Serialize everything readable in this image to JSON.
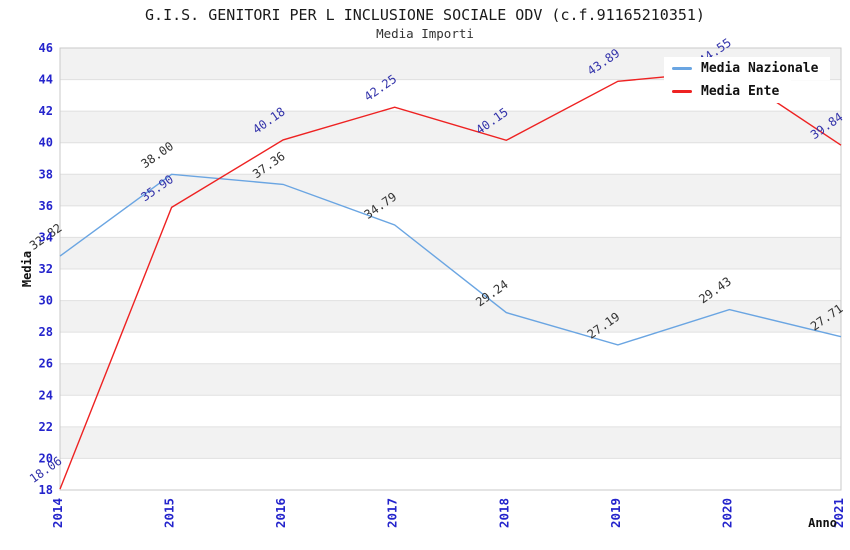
{
  "chart_data": {
    "type": "line",
    "title": "G.I.S. GENITORI PER L INCLUSIONE SOCIALE ODV (c.f.91165210351)",
    "subtitle": "Media Importi",
    "xlabel": "Anno",
    "ylabel": "Media",
    "categories": [
      "2014",
      "2015",
      "2016",
      "2017",
      "2018",
      "2019",
      "2020",
      "2021"
    ],
    "series": [
      {
        "name": "Media Nazionale",
        "color": "#6aa5e2",
        "label_color": "#333333",
        "values": [
          32.82,
          38.0,
          37.36,
          34.79,
          29.24,
          27.19,
          29.43,
          27.71
        ]
      },
      {
        "name": "Media Ente",
        "color": "#ee2222",
        "label_color": "#3333aa",
        "values": [
          18.06,
          35.9,
          40.18,
          42.25,
          40.15,
          43.89,
          44.55,
          39.84
        ]
      }
    ],
    "ylim": [
      18,
      46
    ],
    "ytick_step": 2,
    "grid": true,
    "band_fill": "#f2f2f2",
    "gridline_color": "#e0e0e0",
    "border_color": "#c9c9c9",
    "tick_color": "#2424cc",
    "legend_position": "top-right",
    "data_labels": true,
    "data_label_rotation_deg": -35
  }
}
